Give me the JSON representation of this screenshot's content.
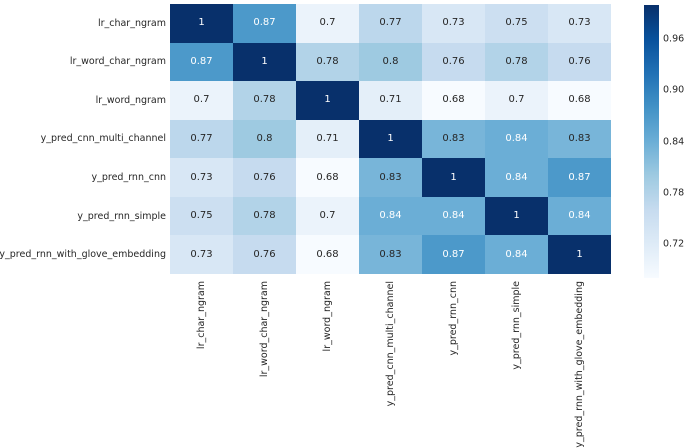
{
  "figure": {
    "background": "#ffffff",
    "text_color": "#262626"
  },
  "chart_data": {
    "type": "heatmap",
    "title": "",
    "xlabel": "",
    "ylabel": "",
    "categories": [
      "lr_char_ngram",
      "lr_word_char_ngram",
      "lr_word_ngram",
      "y_pred_cnn_multi_channel",
      "y_pred_rnn_cnn",
      "y_pred_rnn_simple",
      "y_pred_rnn_with_glove_embedding"
    ],
    "matrix": [
      [
        1,
        0.87,
        0.7,
        0.77,
        0.73,
        0.75,
        0.73
      ],
      [
        0.87,
        1,
        0.78,
        0.8,
        0.76,
        0.78,
        0.76
      ],
      [
        0.7,
        0.78,
        1,
        0.71,
        0.68,
        0.7,
        0.68
      ],
      [
        0.77,
        0.8,
        0.71,
        1,
        0.83,
        0.84,
        0.83
      ],
      [
        0.73,
        0.76,
        0.68,
        0.83,
        1,
        0.84,
        0.87
      ],
      [
        0.75,
        0.78,
        0.7,
        0.84,
        0.84,
        1,
        0.84
      ],
      [
        0.73,
        0.76,
        0.68,
        0.83,
        0.87,
        0.84,
        1
      ]
    ],
    "vmin": 0.68,
    "vmax": 1.0,
    "colormap": "Blues",
    "colormap_anchors": [
      "#f7fbff",
      "#deebf7",
      "#c6dbef",
      "#9ecae1",
      "#6baed6",
      "#4292c6",
      "#2171b5",
      "#08519c",
      "#08306b"
    ],
    "annotation_text_dark": "#262626",
    "annotation_text_light": "#ffffff",
    "x_tick_rotation": 90,
    "grid": false,
    "legend": "none",
    "colorbar": {
      "position": "right",
      "ticks": [
        {
          "label": "0.96",
          "value": 0.96
        },
        {
          "label": "0.90",
          "value": 0.9
        },
        {
          "label": "0.84",
          "value": 0.84
        },
        {
          "label": "0.78",
          "value": 0.78
        },
        {
          "label": "0.72",
          "value": 0.72
        }
      ]
    }
  }
}
